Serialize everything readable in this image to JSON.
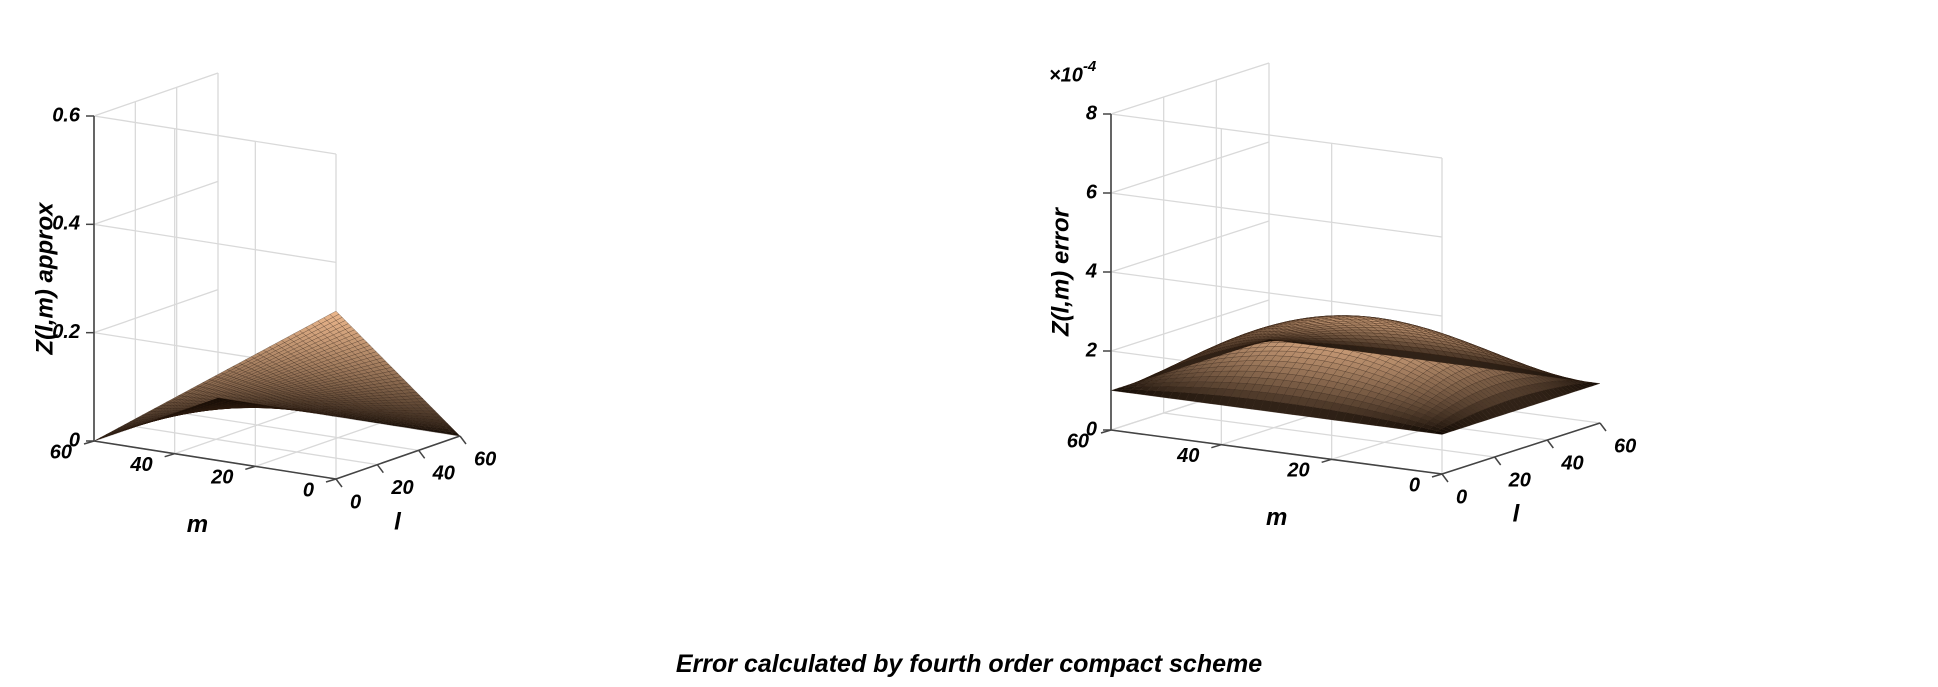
{
  "figure": {
    "caption": "Error calculated by fourth order compact scheme"
  },
  "chart_data": [
    {
      "type": "surface",
      "xlabel": "l",
      "ylabel": "m",
      "zlabel": "Z(l,m) approx",
      "xlim": [
        0,
        60
      ],
      "ylim": [
        0,
        60
      ],
      "zlim": [
        0,
        0.6
      ],
      "xticks": [
        "0",
        "20",
        "40",
        "60"
      ],
      "yticks": [
        "0",
        "20",
        "40",
        "60"
      ],
      "zticks": [
        "0",
        "0.2",
        "0.4",
        "0.6"
      ],
      "zexponent": "",
      "grid": true,
      "surface": {
        "function": "bilinear peak",
        "grid_points": 61,
        "corner_values": {
          "l0_m0": 0.31,
          "l60_m0": 0.0,
          "l0_m60": 0.0,
          "l60_m60": 0.0
        },
        "peak_value": 0.31
      },
      "colors": {
        "surface_high": "#e8b48a",
        "surface_low": "#000000",
        "mesh": "#3a2414"
      }
    },
    {
      "type": "surface",
      "xlabel": "l",
      "ylabel": "m",
      "zlabel": "Z(l,m) error",
      "xlim": [
        0,
        60
      ],
      "ylim": [
        0,
        60
      ],
      "zlim": [
        0,
        8
      ],
      "xticks": [
        "0",
        "20",
        "40",
        "60"
      ],
      "yticks": [
        "0",
        "20",
        "40",
        "60"
      ],
      "zticks": [
        "0",
        "2",
        "4",
        "6",
        "8"
      ],
      "zexponent": "×10",
      "zexponent_power": "-4",
      "grid": true,
      "surface": {
        "function": "sine-product dome",
        "grid_points": 61,
        "peak_value": 2.7,
        "edge_value": 1.0
      },
      "colors": {
        "surface_high": "#e8b48a",
        "surface_low": "#000000",
        "mesh": "#3a2414"
      }
    }
  ]
}
